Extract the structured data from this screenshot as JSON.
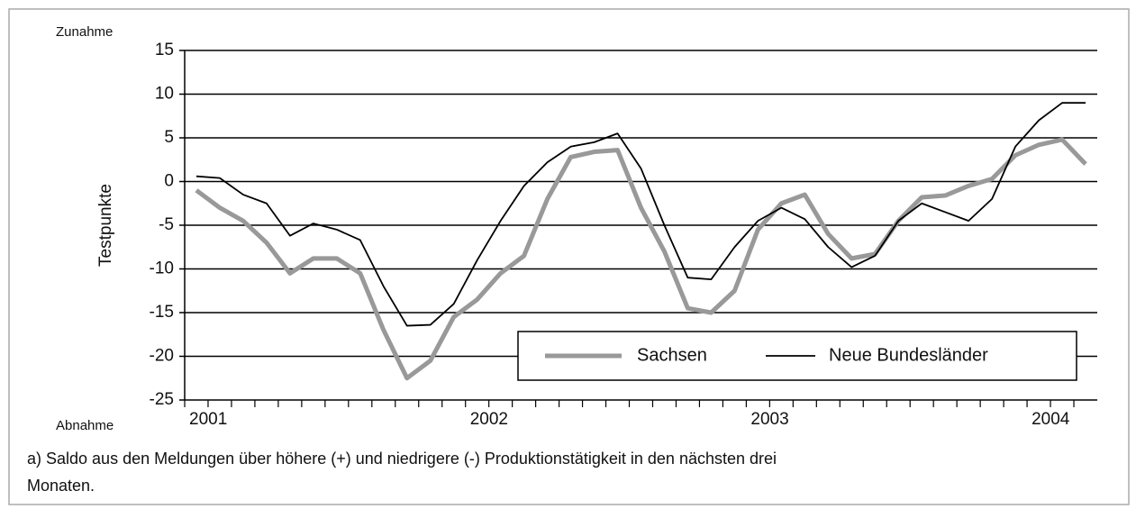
{
  "chart_data": {
    "type": "line",
    "top_label": "Zunahme",
    "bottom_label": "Abnahme",
    "ylabel": "Testpunkte",
    "categories": [
      "2001",
      null,
      null,
      null,
      null,
      null,
      null,
      null,
      null,
      null,
      null,
      null,
      "2002",
      null,
      null,
      null,
      null,
      null,
      null,
      null,
      null,
      null,
      null,
      null,
      "2003",
      null,
      null,
      null,
      null,
      null,
      null,
      null,
      null,
      null,
      null,
      null,
      "2004",
      null,
      null
    ],
    "series": [
      {
        "name": "Sachsen",
        "color": "#999999",
        "values": [
          -1,
          -3,
          -4.5,
          -7,
          -10.5,
          -8.8,
          -8.8,
          -10.5,
          -17,
          -22.5,
          -20.5,
          -15.5,
          -13.5,
          -10.5,
          -8.5,
          -2,
          2.8,
          3.4,
          3.6,
          -3,
          -8,
          -14.5,
          -15,
          -12.5,
          -5.5,
          -2.5,
          -1.5,
          -6,
          -8.8,
          -8.3,
          -4.5,
          -1.8,
          -1.6,
          -0.5,
          0.3,
          3,
          4.2,
          4.8,
          2
        ]
      },
      {
        "name": "Neue Bundesländer",
        "color": "#000000",
        "values": [
          0.6,
          0.4,
          -1.5,
          -2.5,
          -6.2,
          -4.8,
          -5.5,
          -6.7,
          -12,
          -16.5,
          -16.4,
          -14,
          -9,
          -4.5,
          -0.5,
          2.2,
          4,
          4.5,
          5.5,
          1.5,
          -5,
          -11,
          -11.2,
          -7.5,
          -4.5,
          -3,
          -4.3,
          -7.5,
          -9.8,
          -8.5,
          -4.5,
          -2.5,
          -3.5,
          -4.5,
          -2,
          4,
          7,
          9,
          9
        ]
      }
    ],
    "ylim": [
      -25,
      15
    ],
    "yticks": [
      -25,
      -20,
      -15,
      -10,
      -5,
      0,
      5,
      10,
      15
    ],
    "grid": true,
    "legend": "lower right",
    "footnote": [
      "a) Saldo aus den Meldungen über höhere (+) und niedrigere (-) Produktionstätigkeit in den nächsten drei",
      "Monaten."
    ]
  }
}
